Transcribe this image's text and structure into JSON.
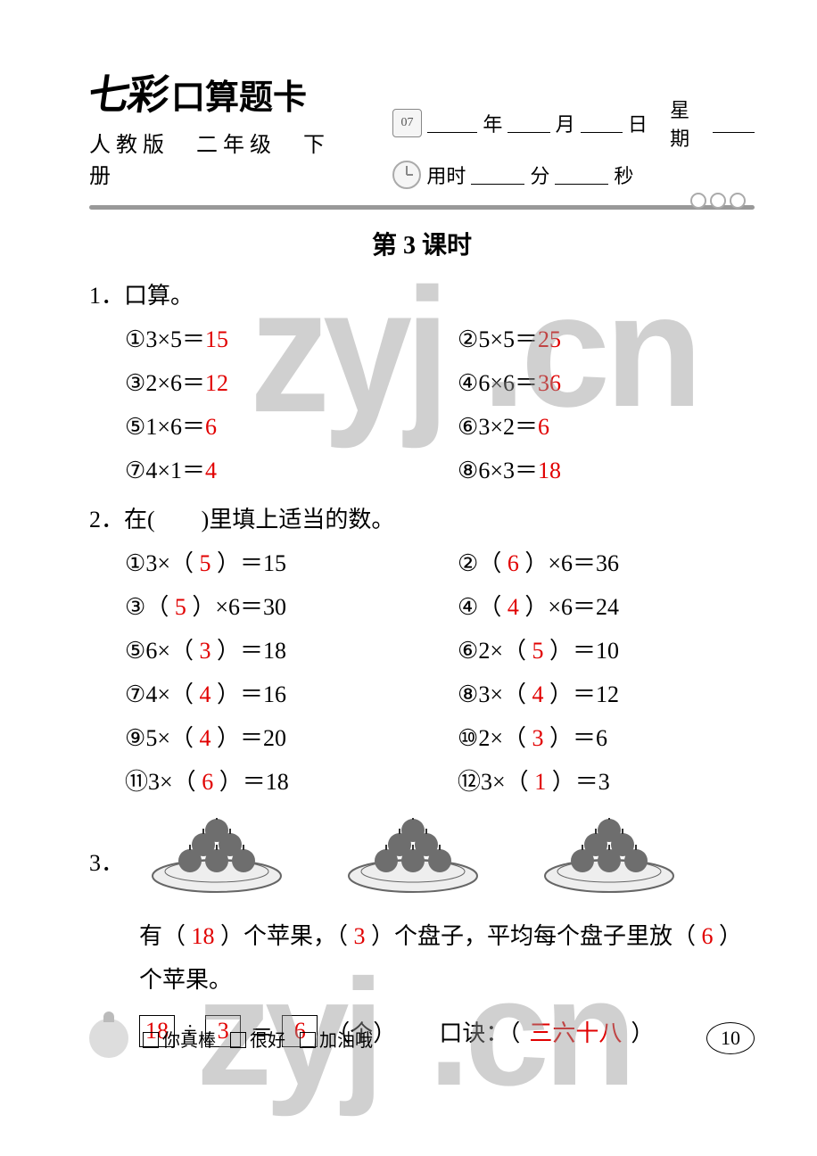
{
  "colors": {
    "answer": "#e10000",
    "text": "#000000",
    "divider": "#999999",
    "bg": "#ffffff"
  },
  "header": {
    "title_fancy": "七彩",
    "title_rest": "口算题卡",
    "subtitle": "人教版　二年级　下册",
    "cal_label": "07",
    "date_labels": {
      "year": "年",
      "month": "月",
      "day": "日",
      "weekday": "星期"
    },
    "time_labels": {
      "prefix": "用时",
      "min": "分",
      "sec": "秒"
    }
  },
  "lesson_title": "第 3 课时",
  "q1": {
    "heading": "1．口算。",
    "items": [
      {
        "n": "①",
        "expr": "3×5＝",
        "ans": "15"
      },
      {
        "n": "②",
        "expr": "5×5＝",
        "ans": "25"
      },
      {
        "n": "③",
        "expr": "2×6＝",
        "ans": "12"
      },
      {
        "n": "④",
        "expr": "6×6＝",
        "ans": "36"
      },
      {
        "n": "⑤",
        "expr": "1×6＝",
        "ans": "6"
      },
      {
        "n": "⑥",
        "expr": "3×2＝",
        "ans": "6"
      },
      {
        "n": "⑦",
        "expr": "4×1＝",
        "ans": "4"
      },
      {
        "n": "⑧",
        "expr": "6×3＝",
        "ans": "18"
      }
    ]
  },
  "q2": {
    "heading": "2．在(　　)里填上适当的数。",
    "items": [
      {
        "n": "①",
        "pre": "3×（ ",
        "ans": "5",
        "post": " ）＝15"
      },
      {
        "n": "②",
        "pre": "（ ",
        "ans": "6",
        "post": " ）×6＝36"
      },
      {
        "n": "③",
        "pre": "（ ",
        "ans": "5",
        "post": " ）×6＝30"
      },
      {
        "n": "④",
        "pre": "（ ",
        "ans": "4",
        "post": " ）×6＝24"
      },
      {
        "n": "⑤",
        "pre": "6×（ ",
        "ans": "3",
        "post": " ）＝18"
      },
      {
        "n": "⑥",
        "pre": "2×（ ",
        "ans": "5",
        "post": " ）＝10"
      },
      {
        "n": "⑦",
        "pre": "4×（ ",
        "ans": "4",
        "post": " ）＝16"
      },
      {
        "n": "⑧",
        "pre": "3×（ ",
        "ans": "4",
        "post": " ）＝12"
      },
      {
        "n": "⑨",
        "pre": "5×（ ",
        "ans": "4",
        "post": " ）＝20"
      },
      {
        "n": "⑩",
        "pre": "2×（ ",
        "ans": "3",
        "post": " ）＝6"
      },
      {
        "n": "⑪",
        "pre": "3×（ ",
        "ans": "6",
        "post": " ）＝18"
      },
      {
        "n": "⑫",
        "pre": "3×（ ",
        "ans": "1",
        "post": " ）＝3"
      }
    ]
  },
  "q3": {
    "num": "3．",
    "plate_count": 3,
    "apples_per_plate": 6,
    "plate_colors": {
      "apple": "#6e6e6e",
      "stem": "#333333",
      "plate_fill": "#eeeeee",
      "plate_stroke": "#666666"
    },
    "text": {
      "t1": "有（ ",
      "a1": "18",
      "t2": " ）个苹果，（ ",
      "a2": "3",
      "t3": " ）个盘子，平均每个盘子里放（ ",
      "a3": "6",
      "t4": " ）",
      "line2": "个苹果。"
    },
    "calc": {
      "b1": "18",
      "op1": "÷",
      "b2": "3",
      "op2": "＝",
      "b3": "6",
      "unit": "（个）",
      "koujue_label": "口诀：（ ",
      "koujue_ans": "三六十八",
      "koujue_end": " ）"
    }
  },
  "footer": {
    "opts": [
      "你真棒",
      "很好",
      "加油哦"
    ],
    "page": "10"
  },
  "watermark": {
    "a": "zyj",
    "b": ".cn"
  }
}
